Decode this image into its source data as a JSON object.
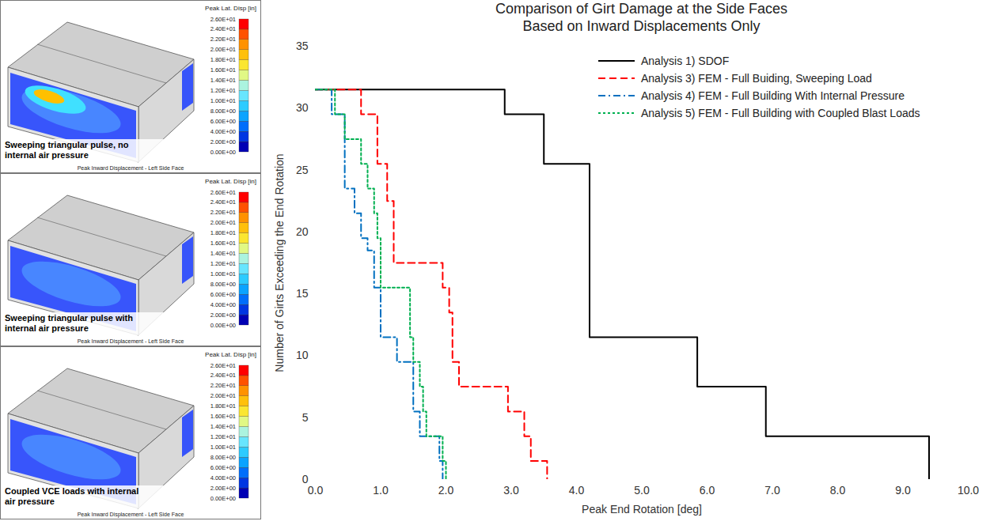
{
  "chart_data": {
    "type": "line",
    "title": "Comparison of Girt Damage at the Side Faces",
    "subtitle": "Based on Inward Displacements Only",
    "x_label": "Peak End Rotation [deg]",
    "y_label": "Number of Girts Exceeding the End Rotation",
    "xlim": [
      0,
      10
    ],
    "xticks": [
      {
        "value": 0,
        "label": "0.0"
      },
      {
        "value": 1,
        "label": "1.0"
      },
      {
        "value": 2,
        "label": "2.0"
      },
      {
        "value": 3,
        "label": "3.0"
      },
      {
        "value": 4,
        "label": "4.0"
      },
      {
        "value": 5,
        "label": "5.0"
      },
      {
        "value": 6,
        "label": "6.0"
      },
      {
        "value": 7,
        "label": "7.0"
      },
      {
        "value": 8,
        "label": "8.0"
      },
      {
        "value": 9,
        "label": "9.0"
      },
      {
        "value": 10,
        "label": "10.0"
      }
    ],
    "ylim": [
      0,
      35
    ],
    "yticks": [
      0,
      5,
      10,
      15,
      20,
      25,
      30,
      35
    ],
    "grid": false,
    "legend": "top-right",
    "series": [
      {
        "name": "Analysis 1) SDOF",
        "color": "#000000",
        "line_style": "solid",
        "x": [
          0,
          2.9,
          3.5,
          4.2,
          5.85,
          6.9,
          9.4
        ],
        "values": [
          31.5,
          29.5,
          25.5,
          11.5,
          7.5,
          3.5,
          0
        ]
      },
      {
        "name": "Analysis 3) FEM - Full Buiding, Sweeping Load",
        "color": "#ff0000",
        "line_style": "dashed",
        "x": [
          0,
          0.7,
          0.95,
          1.1,
          1.2,
          1.95,
          2.05,
          2.1,
          2.2,
          2.95,
          3.2,
          3.3,
          3.55
        ],
        "values": [
          31.5,
          29.5,
          25.5,
          22.5,
          17.5,
          15.5,
          13.5,
          9.5,
          7.5,
          5.5,
          3.5,
          1.5,
          0
        ]
      },
      {
        "name": "Analysis 4) FEM - Full Building With Internal Pressure",
        "color": "#0070c0",
        "line_style": "dashdot",
        "x": [
          0,
          0.25,
          0.45,
          0.6,
          0.7,
          0.8,
          0.9,
          1.0,
          1.25,
          1.5,
          1.6,
          1.9,
          1.95
        ],
        "values": [
          31.5,
          29.5,
          23.5,
          21.5,
          19.5,
          18.5,
          15.5,
          11.5,
          9.5,
          5.5,
          3.5,
          1.5,
          0
        ]
      },
      {
        "name": "Analysis 5) FEM - Full Building with Coupled Blast Loads",
        "color": "#00b050",
        "line_style": "dotted",
        "x": [
          0,
          0.3,
          0.45,
          0.7,
          0.8,
          0.9,
          0.95,
          1.0,
          1.45,
          1.5,
          1.6,
          1.65,
          1.7,
          1.95,
          2.0
        ],
        "values": [
          31.5,
          29.5,
          27.5,
          25.5,
          23.5,
          21.5,
          19.5,
          15.5,
          11.5,
          9.5,
          7.5,
          5.5,
          3.5,
          1.5,
          0
        ]
      }
    ]
  },
  "panels": {
    "captions": [
      "Sweeping triangular pulse, no internal air pressure",
      "Sweeping triangular pulse with internal air pressure",
      "Coupled VCE loads with internal air pressure"
    ],
    "footer": "Peak Inward Displacement - Left Side Face",
    "colorbar": {
      "title": "Peak Lat. Disp [in]",
      "range": [
        0,
        26
      ],
      "ticks": [
        {
          "value": 0,
          "label": "0.00E+00"
        },
        {
          "value": 2,
          "label": "2.00E+00"
        },
        {
          "value": 4,
          "label": "4.00E+00"
        },
        {
          "value": 6,
          "label": "6.00E+00"
        },
        {
          "value": 8,
          "label": "8.00E+00"
        },
        {
          "value": 10,
          "label": "1.00E+01"
        },
        {
          "value": 12,
          "label": "1.20E+01"
        },
        {
          "value": 14,
          "label": "1.40E+01"
        },
        {
          "value": 16,
          "label": "1.60E+01"
        },
        {
          "value": 18,
          "label": "1.80E+01"
        },
        {
          "value": 20,
          "label": "2.00E+01"
        },
        {
          "value": 22,
          "label": "2.20E+01"
        },
        {
          "value": 24,
          "label": "2.40E+01"
        },
        {
          "value": 26,
          "label": "2.60E+01"
        }
      ]
    }
  }
}
